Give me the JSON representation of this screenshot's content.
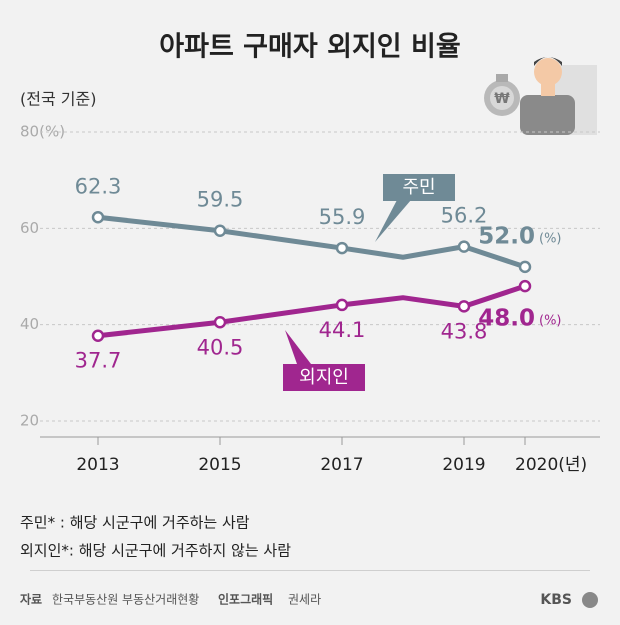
{
  "chart_data": {
    "type": "line",
    "title": "아파트 구매자 외지인 비율",
    "subtitle": "(전국 기준)",
    "x": [
      2013,
      2015,
      2017,
      2018,
      2019,
      2020
    ],
    "xlim": [
      2012,
      2021
    ],
    "xticks": [
      2013,
      2015,
      2017,
      2019,
      {
        "value": 2020,
        "label": "2020(년)"
      }
    ],
    "ylim": [
      20,
      80
    ],
    "yticks": [
      20,
      40,
      60,
      {
        "value": 80,
        "label": "80(%)"
      }
    ],
    "grid": true,
    "series": [
      {
        "name": "주민",
        "color": "#6f8a96",
        "values": [
          62.3,
          59.5,
          55.9,
          54.0,
          56.2,
          52.0
        ],
        "value_labels": [
          "62.3",
          "59.5",
          "55.9",
          null,
          "56.2",
          "52.0"
        ],
        "unit": "(%)"
      },
      {
        "name": "외지인",
        "color": "#a0268f",
        "values": [
          37.7,
          40.5,
          44.1,
          45.6,
          43.8,
          48.0
        ],
        "value_labels": [
          "37.7",
          "40.5",
          "44.1",
          null,
          "43.8",
          "48.0"
        ],
        "unit": "(%)"
      }
    ],
    "notes": [
      "주민* : 해당 시군구에 거주하는 사람",
      "외지인*: 해당 시군구에 거주하지 않는 사람"
    ],
    "source_label": "자료",
    "source": "한국부동산원 부동산거래현황",
    "credit_label": "인포그래픽",
    "credit": "권세라",
    "logo": "KBS"
  }
}
